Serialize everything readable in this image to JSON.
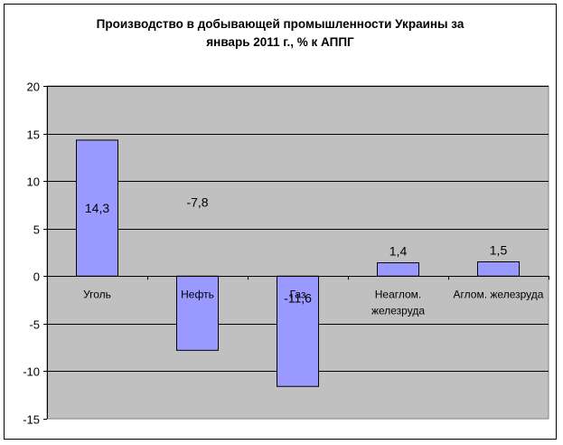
{
  "chart_data": {
    "type": "bar",
    "title_line1": "Производство в добывающей промышленности Украины за",
    "title_line2": "январь 2011 г., % к АППГ",
    "categories": [
      [
        "Уголь"
      ],
      [
        "Нефть"
      ],
      [
        "Газ"
      ],
      [
        "Неаглом.",
        "железруда"
      ],
      [
        "Аглом. железруда"
      ]
    ],
    "values": [
      14.3,
      -7.8,
      -11.6,
      1.4,
      1.5
    ],
    "data_labels": [
      "14,3",
      "-7,8",
      "-11,6",
      "1,4",
      "1,5"
    ],
    "ylim": [
      -15,
      20
    ],
    "yticks": [
      20,
      15,
      10,
      5,
      0,
      -5,
      -10,
      -15
    ],
    "grid": true,
    "xlabel": "",
    "ylabel": "",
    "colors": {
      "plot_background": "#c0c0c0",
      "bar_fill": "#9999ff",
      "bar_stroke": "#000000",
      "gridline": "#000000"
    }
  }
}
